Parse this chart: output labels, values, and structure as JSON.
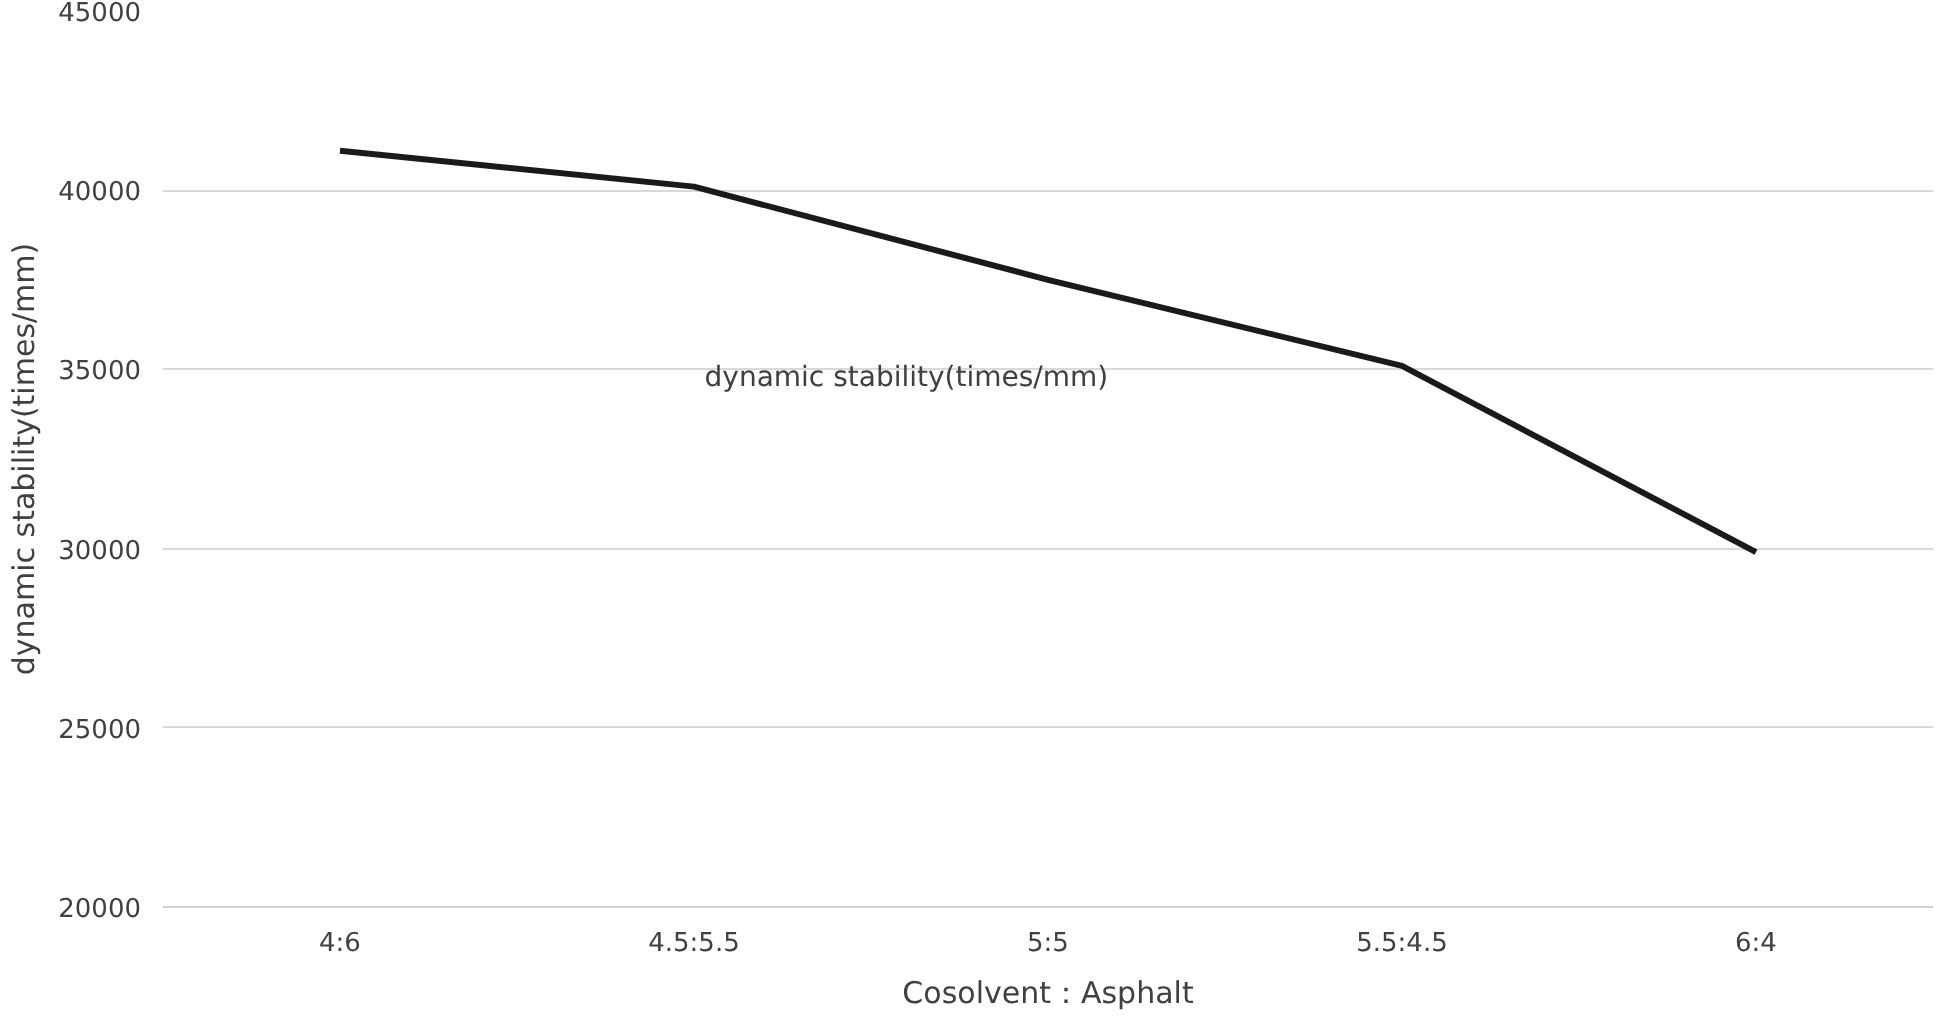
{
  "chart_data": {
    "type": "line",
    "xlabel": "Cosolvent：Asphalt",
    "ylabel": "dynamic stability(times/mm)",
    "categories": [
      "4:6",
      "4.5:5.5",
      "5:5",
      "5.5:4.5",
      "6:4"
    ],
    "series": [
      {
        "name": "dynamic stability(times/mm)",
        "color": "#1a1a1a",
        "values": [
          41100,
          40100,
          37500,
          35100,
          29900
        ]
      }
    ],
    "ylim": [
      20000,
      45000
    ],
    "yticks": [
      20000,
      25000,
      30000,
      35000,
      40000,
      45000
    ],
    "grid": "y",
    "legend": false,
    "marker": "none",
    "line_style": "solid"
  }
}
